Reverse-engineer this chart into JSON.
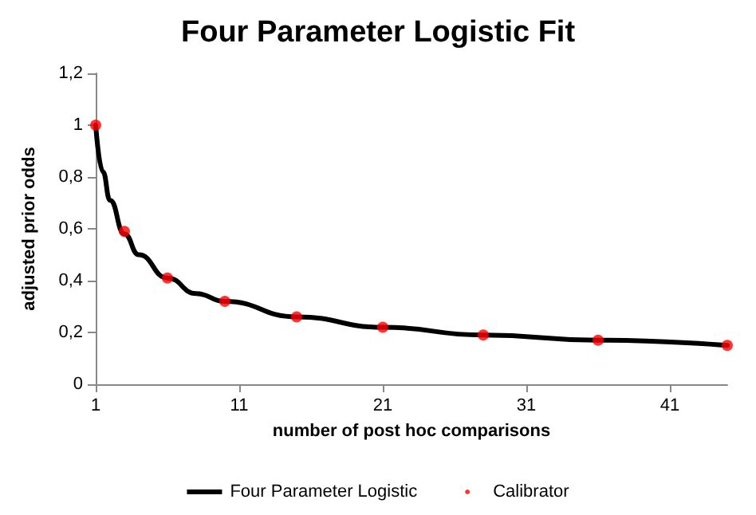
{
  "chart_data": {
    "type": "line",
    "title": "Four Parameter Logistic Fit",
    "xlabel": "number of post hoc comparisons",
    "ylabel": "adjusted prior odds",
    "series": [
      {
        "name": "Four Parameter Logistic",
        "type": "line",
        "color": "#000000",
        "marker": "none",
        "line_style": "solid",
        "x": [
          1,
          1.5,
          2,
          3,
          4,
          6,
          8,
          10,
          15,
          21,
          28,
          36,
          45
        ],
        "values": [
          1,
          0.82,
          0.71,
          0.58,
          0.5,
          0.41,
          0.35,
          0.32,
          0.26,
          0.22,
          0.19,
          0.17,
          0.15
        ]
      },
      {
        "name": "Calibrator",
        "type": "scatter",
        "color": "#ff0000",
        "marker": "circle",
        "x": [
          1,
          3,
          6,
          10,
          15,
          21,
          28,
          36,
          45
        ],
        "values": [
          1,
          0.59,
          0.41,
          0.32,
          0.26,
          0.22,
          0.19,
          0.17,
          0.15
        ]
      }
    ],
    "xlim": [
      1,
      45
    ],
    "xticks": [
      1,
      11,
      21,
      31,
      41
    ],
    "ylim": [
      0,
      1.2
    ],
    "yticks": [
      0,
      {
        "value": 0.2,
        "label": "0,2"
      },
      {
        "value": 0.4,
        "label": "0,4"
      },
      {
        "value": 0.6,
        "label": "0,6"
      },
      {
        "value": 0.8,
        "label": "0,8"
      },
      1,
      {
        "value": 1.2,
        "label": "1,2"
      }
    ],
    "grid": false,
    "legend": "bottom"
  }
}
